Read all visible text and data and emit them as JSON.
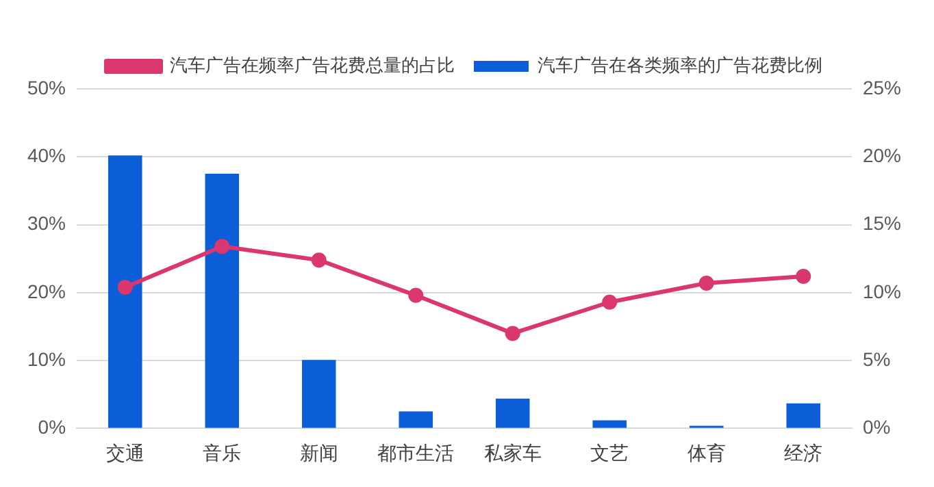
{
  "chart_data": {
    "type": "bar",
    "categories": [
      "交通",
      "音乐",
      "新闻",
      "都市生活",
      "私家车",
      "文艺",
      "体育",
      "经济"
    ],
    "series": [
      {
        "name": "汽车广告在各类频率的广告花费比例",
        "color": "#0b5ed7",
        "values": [
          40.2,
          37.5,
          10.1,
          2.5,
          4.4,
          1.2,
          0.4,
          3.7
        ]
      },
      {
        "name": "汽车广告在频率广告花费总量的占比",
        "type": "line",
        "axis": "y2",
        "marker": "circle",
        "color": "#d9376e",
        "values": [
          10.4,
          13.4,
          12.4,
          9.8,
          7.0,
          9.3,
          10.7,
          11.2
        ]
      }
    ],
    "ylim": [
      0,
      50
    ],
    "yticks": [
      {
        "value": 0,
        "label": "0%"
      },
      {
        "value": 10,
        "label": "10%"
      },
      {
        "value": 20,
        "label": "20%"
      },
      {
        "value": 30,
        "label": "30%"
      },
      {
        "value": 40,
        "label": "40%"
      },
      {
        "value": 50,
        "label": "50%"
      }
    ],
    "y2lim": [
      0,
      25
    ],
    "y2ticks": [
      {
        "value": 0,
        "label": "0%"
      },
      {
        "value": 5,
        "label": "5%"
      },
      {
        "value": 10,
        "label": "10%"
      },
      {
        "value": 15,
        "label": "15%"
      },
      {
        "value": 20,
        "label": "20%"
      },
      {
        "value": 25,
        "label": "25%"
      }
    ],
    "grid": "y",
    "legend": "top"
  }
}
